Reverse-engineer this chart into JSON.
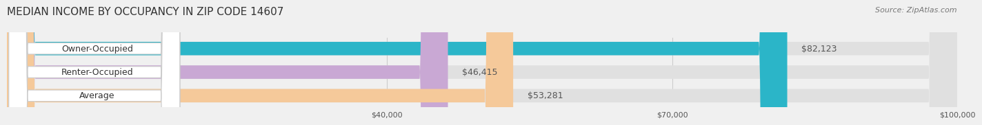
{
  "title": "MEDIAN INCOME BY OCCUPANCY IN ZIP CODE 14607",
  "source": "Source: ZipAtlas.com",
  "categories": [
    "Owner-Occupied",
    "Renter-Occupied",
    "Average"
  ],
  "values": [
    82123,
    46415,
    53281
  ],
  "bar_colors": [
    "#2bb5c8",
    "#c9a8d4",
    "#f5c99a"
  ],
  "label_colors": [
    "#ffffff",
    "#555555",
    "#555555"
  ],
  "value_labels": [
    "$82,123",
    "$46,415",
    "$53,281"
  ],
  "xlim": [
    0,
    100000
  ],
  "xticks": [
    40000,
    70000,
    100000
  ],
  "xtick_labels": [
    "$40,000",
    "$70,000",
    "$100,000"
  ],
  "background_color": "#f0f0f0",
  "bar_background_color": "#e8e8e8",
  "title_fontsize": 11,
  "source_fontsize": 8,
  "label_fontsize": 9,
  "value_fontsize": 9
}
